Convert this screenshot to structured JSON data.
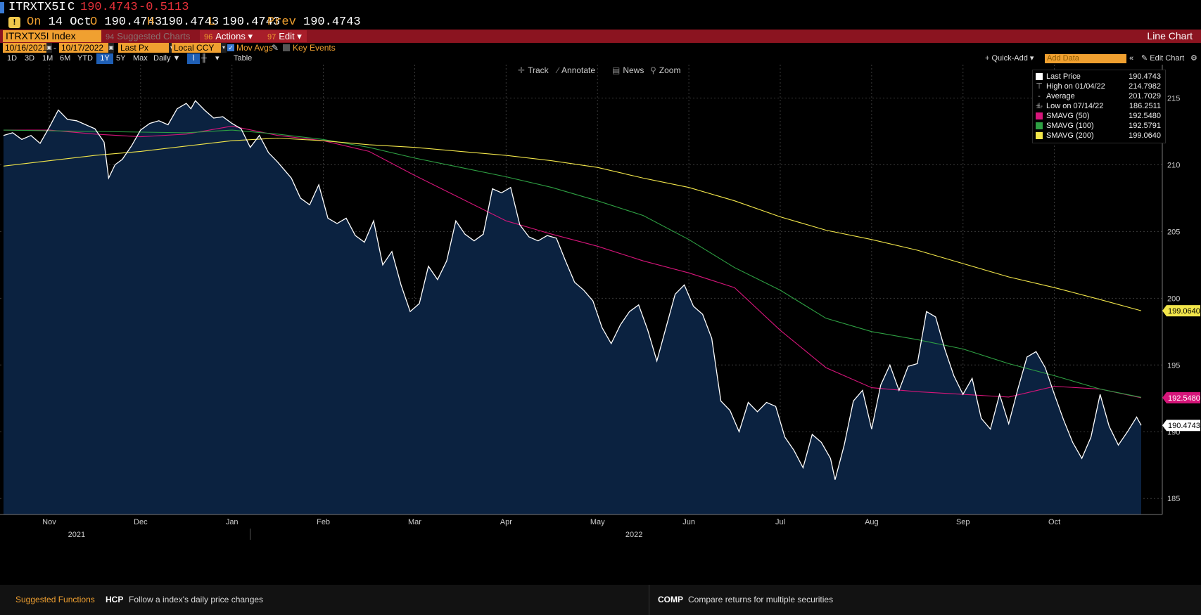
{
  "quote": {
    "ticker": "ITRXTX5I",
    "c_label": "C",
    "last": "190.4743",
    "change": "-0.5113",
    "on_label": "On",
    "date": "14 Oct",
    "o_label": "O",
    "open": "190.4743",
    "h_label": "H",
    "high": "190.4743",
    "l_label": "L",
    "low": "190.4743",
    "prev_label": "Prev",
    "prev": "190.4743"
  },
  "toolbar": {
    "ticker_box": "ITRXTX5I Index",
    "suggested": {
      "num": "94",
      "label": "Suggested Charts"
    },
    "actions": {
      "num": "96",
      "label": "Actions ▾"
    },
    "edit": {
      "num": "97",
      "label": "Edit ▾"
    },
    "chart_type": "Line Chart"
  },
  "daterow": {
    "start_date": "10/16/2021",
    "end_date": "10/17/2022",
    "field": "Last Px",
    "currency": "Local CCY",
    "mov_avgs": "Mov Avgs",
    "key_events": "Key Events"
  },
  "periods": [
    "1D",
    "3D",
    "1M",
    "6M",
    "YTD",
    "1Y",
    "5Y",
    "Max"
  ],
  "active_period": "1Y",
  "frequency": "Daily ▼",
  "table_label": "Table",
  "right_controls": {
    "quick_add": "+ Quick-Add ▾",
    "add_data_placeholder": "Add Data",
    "edit_chart": "Edit Chart"
  },
  "tools": [
    {
      "icon": "crosshair-icon",
      "glyph": "✛",
      "label": "Track"
    },
    {
      "icon": "pencil-icon",
      "glyph": "∕",
      "label": "Annotate"
    },
    {
      "icon": "news-icon",
      "glyph": "▤",
      "label": "News"
    },
    {
      "icon": "zoom-icon",
      "glyph": "⚲",
      "label": "Zoom"
    }
  ],
  "legend": [
    {
      "name": "Last Price",
      "value": "190.4743",
      "color": "#ffffff",
      "kind": "swatch"
    },
    {
      "name": "High on 01/04/22",
      "value": "214.7982",
      "color": "#aaaaaa",
      "kind": "symbol",
      "glyph": "⊤"
    },
    {
      "name": "Average",
      "value": "201.7029",
      "color": "#aaaaaa",
      "kind": "symbol",
      "glyph": "-+-"
    },
    {
      "name": "Low on 07/14/22",
      "value": "186.2511",
      "color": "#aaaaaa",
      "kind": "symbol",
      "glyph": "⊥"
    },
    {
      "name": "SMAVG (50)",
      "value": "192.5480",
      "color": "#d6157a",
      "kind": "swatch"
    },
    {
      "name": "SMAVG (100)",
      "value": "192.5791",
      "color": "#2ea043",
      "kind": "swatch"
    },
    {
      "name": "SMAVG (200)",
      "value": "199.0640",
      "color": "#f2e64a",
      "kind": "swatch"
    }
  ],
  "bottom": {
    "suggested_label": "Suggested Functions",
    "fn1_code": "HCP",
    "fn1_desc": "Follow a index's daily price changes",
    "fn2_code": "COMP",
    "fn2_desc": "Compare returns for multiple securities"
  },
  "chart_data": {
    "type": "line",
    "ylim": [
      183.8,
      217.5
    ],
    "yticks": [
      185,
      190,
      195,
      200,
      205,
      210,
      215
    ],
    "x_months": [
      {
        "label": "Nov",
        "t": 0.5
      },
      {
        "label": "Dec",
        "t": 1.5
      },
      {
        "label": "Jan",
        "t": 2.5
      },
      {
        "label": "Feb",
        "t": 3.5
      },
      {
        "label": "Mar",
        "t": 4.5
      },
      {
        "label": "Apr",
        "t": 5.5
      },
      {
        "label": "May",
        "t": 6.5
      },
      {
        "label": "Jun",
        "t": 7.5
      },
      {
        "label": "Jul",
        "t": 8.5
      },
      {
        "label": "Aug",
        "t": 9.5
      },
      {
        "label": "Sep",
        "t": 10.5
      },
      {
        "label": "Oct",
        "t": 11.5
      }
    ],
    "year_labels": [
      {
        "label": "2021",
        "t": 0.8
      },
      {
        "label": "2022",
        "t": 6.9
      }
    ],
    "end_labels": [
      {
        "value": 199.064,
        "text": "199.0640",
        "bg": "#f2e64a",
        "fg": "#000000"
      },
      {
        "value": 192.548,
        "text": "192.5480",
        "bg": "#d6157a",
        "fg": "#ffffff"
      },
      {
        "value": 190.4743,
        "text": "190.4743",
        "bg": "#ffffff",
        "fg": "#000000"
      }
    ],
    "series": [
      {
        "name": "Last Price",
        "color": "#ffffff",
        "fill": "#0b2240",
        "points": [
          [
            0.0,
            212.2
          ],
          [
            0.1,
            212.4
          ],
          [
            0.2,
            211.9
          ],
          [
            0.3,
            212.2
          ],
          [
            0.4,
            211.6
          ],
          [
            0.5,
            212.8
          ],
          [
            0.6,
            214.1
          ],
          [
            0.7,
            213.4
          ],
          [
            0.8,
            213.3
          ],
          [
            0.9,
            213.0
          ],
          [
            1.0,
            212.7
          ],
          [
            1.1,
            211.7
          ],
          [
            1.15,
            209.0
          ],
          [
            1.22,
            210.0
          ],
          [
            1.3,
            210.4
          ],
          [
            1.4,
            211.4
          ],
          [
            1.5,
            212.6
          ],
          [
            1.6,
            213.1
          ],
          [
            1.7,
            213.3
          ],
          [
            1.8,
            213.0
          ],
          [
            1.9,
            214.2
          ],
          [
            2.0,
            214.6
          ],
          [
            2.05,
            214.2
          ],
          [
            2.1,
            214.8
          ],
          [
            2.2,
            214.1
          ],
          [
            2.3,
            213.5
          ],
          [
            2.4,
            213.6
          ],
          [
            2.5,
            213.1
          ],
          [
            2.6,
            212.7
          ],
          [
            2.7,
            211.3
          ],
          [
            2.8,
            212.2
          ],
          [
            2.9,
            210.9
          ],
          [
            3.0,
            210.2
          ],
          [
            3.15,
            209.0
          ],
          [
            3.25,
            207.5
          ],
          [
            3.35,
            207.0
          ],
          [
            3.45,
            208.5
          ],
          [
            3.55,
            206.0
          ],
          [
            3.65,
            205.6
          ],
          [
            3.75,
            206.0
          ],
          [
            3.85,
            204.7
          ],
          [
            3.95,
            204.2
          ],
          [
            4.05,
            205.8
          ],
          [
            4.15,
            202.5
          ],
          [
            4.25,
            203.5
          ],
          [
            4.35,
            201.0
          ],
          [
            4.45,
            199.0
          ],
          [
            4.55,
            199.6
          ],
          [
            4.65,
            202.4
          ],
          [
            4.75,
            201.4
          ],
          [
            4.85,
            202.8
          ],
          [
            4.95,
            205.8
          ],
          [
            5.05,
            204.8
          ],
          [
            5.15,
            204.3
          ],
          [
            5.25,
            204.8
          ],
          [
            5.35,
            208.2
          ],
          [
            5.45,
            207.9
          ],
          [
            5.55,
            208.3
          ],
          [
            5.65,
            205.5
          ],
          [
            5.75,
            204.6
          ],
          [
            5.85,
            204.3
          ],
          [
            5.95,
            204.7
          ],
          [
            6.05,
            204.5
          ],
          [
            6.15,
            202.8
          ],
          [
            6.25,
            201.2
          ],
          [
            6.35,
            200.6
          ],
          [
            6.45,
            199.8
          ],
          [
            6.55,
            197.8
          ],
          [
            6.65,
            196.6
          ],
          [
            6.75,
            198.0
          ],
          [
            6.85,
            199.0
          ],
          [
            6.95,
            199.5
          ],
          [
            7.05,
            197.6
          ],
          [
            7.15,
            195.3
          ],
          [
            7.25,
            197.8
          ],
          [
            7.35,
            200.3
          ],
          [
            7.45,
            201.0
          ],
          [
            7.55,
            199.4
          ],
          [
            7.65,
            198.8
          ],
          [
            7.75,
            197.0
          ],
          [
            7.85,
            192.3
          ],
          [
            7.95,
            191.6
          ],
          [
            8.05,
            190.0
          ],
          [
            8.15,
            192.2
          ],
          [
            8.25,
            191.5
          ],
          [
            8.35,
            192.2
          ],
          [
            8.45,
            191.9
          ],
          [
            8.55,
            189.6
          ],
          [
            8.65,
            188.6
          ],
          [
            8.75,
            187.3
          ],
          [
            8.85,
            189.8
          ],
          [
            8.95,
            189.2
          ],
          [
            9.05,
            188.0
          ],
          [
            9.1,
            186.4
          ],
          [
            9.2,
            189.0
          ],
          [
            9.3,
            192.3
          ],
          [
            9.4,
            193.1
          ],
          [
            9.5,
            190.2
          ],
          [
            9.6,
            193.5
          ],
          [
            9.7,
            195.0
          ],
          [
            9.8,
            193.1
          ],
          [
            9.9,
            194.9
          ],
          [
            10.0,
            195.1
          ],
          [
            10.1,
            199.0
          ],
          [
            10.2,
            198.6
          ],
          [
            10.3,
            196.2
          ],
          [
            10.4,
            194.2
          ],
          [
            10.5,
            192.8
          ],
          [
            10.6,
            194.0
          ],
          [
            10.7,
            191.0
          ],
          [
            10.8,
            190.2
          ],
          [
            10.9,
            192.8
          ],
          [
            11.0,
            190.6
          ],
          [
            11.1,
            193.2
          ],
          [
            11.2,
            195.6
          ],
          [
            11.3,
            196.0
          ],
          [
            11.4,
            194.8
          ],
          [
            11.5,
            192.8
          ],
          [
            11.6,
            190.9
          ],
          [
            11.7,
            189.2
          ],
          [
            11.8,
            188.0
          ],
          [
            11.9,
            189.6
          ],
          [
            12.0,
            192.8
          ],
          [
            12.1,
            190.4
          ],
          [
            12.2,
            189.0
          ],
          [
            12.3,
            190.0
          ],
          [
            12.4,
            191.1
          ],
          [
            12.45,
            190.4743
          ]
        ]
      },
      {
        "name": "SMAVG (50)",
        "color": "#d6157a",
        "points": [
          [
            0.0,
            212.6
          ],
          [
            0.5,
            212.6
          ],
          [
            1.0,
            212.3
          ],
          [
            1.5,
            212.1
          ],
          [
            2.0,
            212.3
          ],
          [
            2.5,
            212.9
          ],
          [
            3.0,
            212.2
          ],
          [
            3.5,
            211.8
          ],
          [
            4.0,
            211.0
          ],
          [
            4.5,
            209.2
          ],
          [
            5.0,
            207.5
          ],
          [
            5.5,
            205.8
          ],
          [
            6.0,
            204.8
          ],
          [
            6.5,
            203.9
          ],
          [
            7.0,
            202.8
          ],
          [
            7.5,
            201.9
          ],
          [
            8.0,
            200.8
          ],
          [
            8.5,
            197.6
          ],
          [
            9.0,
            194.8
          ],
          [
            9.5,
            193.3
          ],
          [
            10.0,
            193.0
          ],
          [
            10.5,
            192.8
          ],
          [
            11.0,
            192.6
          ],
          [
            11.5,
            193.4
          ],
          [
            12.0,
            193.2
          ],
          [
            12.45,
            192.548
          ]
        ]
      },
      {
        "name": "SMAVG (100)",
        "color": "#2ea043",
        "points": [
          [
            0.0,
            212.6
          ],
          [
            1.0,
            212.5
          ],
          [
            2.0,
            212.4
          ],
          [
            2.5,
            212.6
          ],
          [
            3.0,
            212.3
          ],
          [
            3.5,
            211.9
          ],
          [
            4.0,
            211.3
          ],
          [
            4.5,
            210.5
          ],
          [
            5.0,
            209.8
          ],
          [
            5.5,
            209.1
          ],
          [
            6.0,
            208.3
          ],
          [
            6.5,
            207.3
          ],
          [
            7.0,
            206.2
          ],
          [
            7.5,
            204.4
          ],
          [
            8.0,
            202.3
          ],
          [
            8.5,
            200.6
          ],
          [
            9.0,
            198.5
          ],
          [
            9.5,
            197.5
          ],
          [
            10.0,
            196.9
          ],
          [
            10.5,
            196.2
          ],
          [
            11.0,
            195.1
          ],
          [
            11.5,
            194.2
          ],
          [
            12.0,
            193.2
          ],
          [
            12.45,
            192.579
          ]
        ]
      },
      {
        "name": "SMAVG (200)",
        "color": "#f2e64a",
        "points": [
          [
            0.0,
            209.9
          ],
          [
            0.5,
            210.3
          ],
          [
            1.0,
            210.7
          ],
          [
            1.5,
            211.0
          ],
          [
            2.0,
            211.4
          ],
          [
            2.5,
            211.8
          ],
          [
            3.0,
            212.0
          ],
          [
            3.5,
            211.8
          ],
          [
            4.0,
            211.5
          ],
          [
            4.5,
            211.3
          ],
          [
            5.0,
            211.0
          ],
          [
            5.5,
            210.7
          ],
          [
            6.0,
            210.3
          ],
          [
            6.5,
            209.8
          ],
          [
            7.0,
            209.0
          ],
          [
            7.5,
            208.3
          ],
          [
            8.0,
            207.3
          ],
          [
            8.5,
            206.1
          ],
          [
            9.0,
            205.1
          ],
          [
            9.5,
            204.4
          ],
          [
            10.0,
            203.6
          ],
          [
            10.5,
            202.6
          ],
          [
            11.0,
            201.6
          ],
          [
            11.5,
            200.8
          ],
          [
            12.0,
            199.9
          ],
          [
            12.45,
            199.064
          ]
        ]
      }
    ]
  }
}
